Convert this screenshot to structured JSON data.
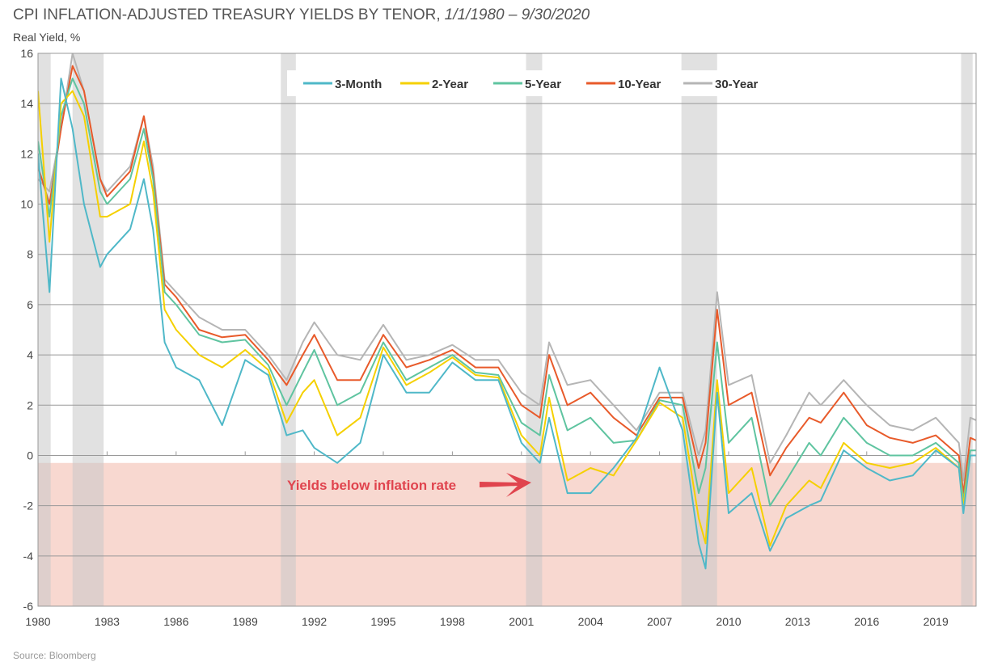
{
  "chart_data": {
    "type": "line",
    "title": "CPI INFLATION-ADJUSTED TREASURY YIELDS BY TENOR,",
    "title_dates": "1/1/1980 – 9/30/2020",
    "ylabel": "Real Yield, %",
    "xlabel": "",
    "source": "Source: Bloomberg",
    "annotation": "Yields below inflation rate",
    "ylim": [
      -6,
      16
    ],
    "xlim": [
      1980,
      2020.75
    ],
    "yticks": [
      16,
      14,
      12,
      10,
      8,
      6,
      4,
      2,
      0,
      -2,
      -4,
      -6
    ],
    "xticks": [
      "1980",
      "1983",
      "1986",
      "1989",
      "1992",
      "1995",
      "1998",
      "2001",
      "2004",
      "2007",
      "2010",
      "2013",
      "2016",
      "2019"
    ],
    "grid": "horizontal",
    "legend_position": "top",
    "negative_zone": {
      "from": -0.3,
      "to": -6,
      "color": "#f8d8d0"
    },
    "recessions": [
      [
        1980.0,
        1980.55
      ],
      [
        1981.5,
        1982.85
      ],
      [
        1990.55,
        1991.2
      ],
      [
        2001.2,
        2001.9
      ],
      [
        2007.95,
        2009.5
      ],
      [
        2020.1,
        2020.6
      ]
    ],
    "x": [
      1980,
      1980.5,
      1981,
      1981.5,
      1982,
      1982.7,
      1983,
      1984,
      1984.6,
      1985,
      1985.5,
      1986,
      1987,
      1988,
      1989,
      1990,
      1990.8,
      1991.5,
      1992,
      1993,
      1994,
      1995,
      1996,
      1997,
      1998,
      1999,
      2000,
      2001,
      2001.8,
      2002.2,
      2003,
      2004,
      2005,
      2006,
      2007,
      2008,
      2008.7,
      2009,
      2009.5,
      2010,
      2011,
      2011.8,
      2012.5,
      2013.5,
      2014,
      2015,
      2016,
      2017,
      2018,
      2019,
      2020,
      2020.2,
      2020.5,
      2020.75
    ],
    "series": [
      {
        "name": "3-Month",
        "color": "#4fb8c8",
        "values": [
          12,
          6.5,
          15,
          13,
          10,
          7.5,
          8,
          9,
          11,
          9,
          4.5,
          3.5,
          3,
          1.2,
          3.8,
          3.2,
          0.8,
          1,
          0.3,
          -0.3,
          0.5,
          4,
          2.5,
          2.5,
          3.7,
          3,
          3,
          0.5,
          -0.3,
          1.5,
          -1.5,
          -1.5,
          -0.5,
          0.7,
          3.5,
          1,
          -3.5,
          -4.5,
          2.5,
          -2.3,
          -1.5,
          -3.8,
          -2.5,
          -2,
          -1.8,
          0.2,
          -0.5,
          -1,
          -0.8,
          0.2,
          -0.5,
          -2.3,
          0,
          0
        ]
      },
      {
        "name": "2-Year",
        "color": "#f5d000",
        "values": [
          14.5,
          8.5,
          14,
          14.5,
          13.5,
          9.5,
          9.5,
          10,
          12.5,
          10.5,
          5.8,
          5,
          4,
          3.5,
          4.2,
          3.4,
          1.3,
          2.5,
          3,
          0.8,
          1.5,
          4.3,
          2.8,
          3.3,
          3.9,
          3.2,
          3.1,
          0.8,
          0,
          2.3,
          -1,
          -0.5,
          -0.8,
          0.6,
          2.1,
          1.5,
          -2.5,
          -3.5,
          3,
          -1.5,
          -0.5,
          -3.6,
          -2,
          -1,
          -1.3,
          0.5,
          -0.3,
          -0.5,
          -0.3,
          0.3,
          -0.5,
          -2,
          0,
          0
        ]
      },
      {
        "name": "5-Year",
        "color": "#5fc4a0",
        "values": [
          12.5,
          9.5,
          13.5,
          15,
          14,
          10.5,
          10,
          11,
          13,
          11,
          6.5,
          6,
          4.8,
          4.5,
          4.6,
          3.6,
          2,
          3.3,
          4.2,
          2,
          2.5,
          4.5,
          3,
          3.5,
          4,
          3.3,
          3.2,
          1.3,
          0.8,
          3.2,
          1,
          1.5,
          0.5,
          0.6,
          2.2,
          2,
          -1.5,
          -0.5,
          4.5,
          0.5,
          1.5,
          -2,
          -1,
          0.5,
          0,
          1.5,
          0.5,
          0,
          0,
          0.5,
          -0.3,
          -1.8,
          0.2,
          0.2
        ]
      },
      {
        "name": "10-Year",
        "color": "#e85a2a",
        "values": [
          11.5,
          10,
          13,
          15.5,
          14.5,
          11,
          10.3,
          11.3,
          13.5,
          11.2,
          6.8,
          6.3,
          5,
          4.7,
          4.8,
          3.8,
          2.8,
          4,
          4.8,
          3,
          3,
          4.8,
          3.5,
          3.8,
          4.2,
          3.5,
          3.5,
          2,
          1.5,
          4,
          2,
          2.5,
          1.5,
          0.8,
          2.3,
          2.3,
          -0.5,
          0.5,
          5.8,
          2,
          2.5,
          -0.8,
          0.3,
          1.5,
          1.3,
          2.5,
          1.2,
          0.7,
          0.5,
          0.8,
          0,
          -1.5,
          0.7,
          0.6
        ]
      },
      {
        "name": "30-Year",
        "color": "#b5b5b5",
        "values": [
          11,
          10.5,
          13,
          16,
          14.5,
          11,
          10.5,
          11.5,
          13.5,
          11.5,
          7,
          6.5,
          5.5,
          5,
          5,
          4,
          3,
          4.5,
          5.3,
          4,
          3.8,
          5.2,
          3.8,
          4,
          4.4,
          3.8,
          3.8,
          2.5,
          2,
          4.5,
          2.8,
          3,
          2,
          1,
          2.5,
          2.5,
          0,
          1,
          6.5,
          2.8,
          3.2,
          -0.3,
          0.8,
          2.5,
          2,
          3,
          2,
          1.2,
          1,
          1.5,
          0.5,
          -1,
          1.5,
          1.4
        ]
      }
    ]
  }
}
